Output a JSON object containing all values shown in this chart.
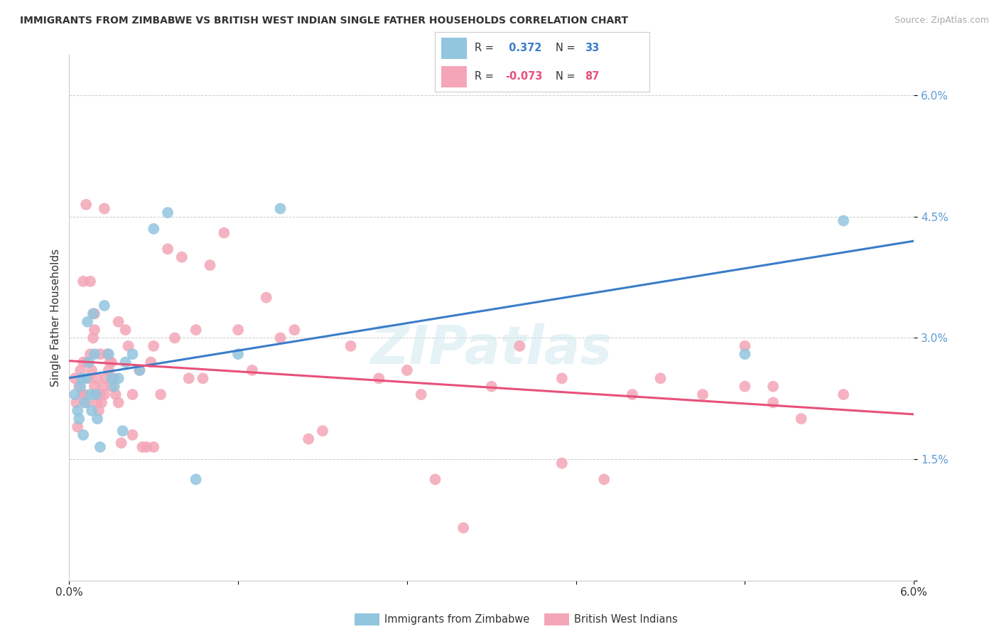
{
  "title": "IMMIGRANTS FROM ZIMBABWE VS BRITISH WEST INDIAN SINGLE FATHER HOUSEHOLDS CORRELATION CHART",
  "source": "Source: ZipAtlas.com",
  "ylabel": "Single Father Households",
  "xlim": [
    0.0,
    6.0
  ],
  "ylim": [
    0.0,
    6.5
  ],
  "ytick_vals": [
    0.0,
    1.5,
    3.0,
    4.5,
    6.0
  ],
  "ytick_labels": [
    "",
    "1.5%",
    "3.0%",
    "4.5%",
    "6.0%"
  ],
  "xtick_vals": [
    0.0,
    1.2,
    2.4,
    3.6,
    4.8,
    6.0
  ],
  "xtick_labels": [
    "0.0%",
    "",
    "",
    "",
    "",
    "6.0%"
  ],
  "R_blue": 0.372,
  "N_blue": 33,
  "R_pink": -0.073,
  "N_pink": 87,
  "legend_label_blue": "Immigrants from Zimbabwe",
  "legend_label_pink": "British West Indians",
  "blue_color": "#92c5de",
  "pink_color": "#f4a6b8",
  "blue_line_color": "#3a7dc9",
  "pink_line_color": "#e8507a",
  "blue_x": [
    0.04,
    0.06,
    0.07,
    0.08,
    0.09,
    0.1,
    0.11,
    0.12,
    0.13,
    0.14,
    0.15,
    0.16,
    0.17,
    0.18,
    0.19,
    0.2,
    0.22,
    0.25,
    0.28,
    0.3,
    0.32,
    0.35,
    0.38,
    0.4,
    0.45,
    0.5,
    0.6,
    0.7,
    0.9,
    1.2,
    1.5,
    4.8,
    5.5
  ],
  "blue_y": [
    2.3,
    2.1,
    2.0,
    2.4,
    2.5,
    1.8,
    2.2,
    2.5,
    3.2,
    2.7,
    2.3,
    2.1,
    3.3,
    2.8,
    2.3,
    2.0,
    1.65,
    3.4,
    2.8,
    2.5,
    2.4,
    2.5,
    1.85,
    2.7,
    2.8,
    2.6,
    4.35,
    4.55,
    1.25,
    2.8,
    4.6,
    2.8,
    4.45
  ],
  "pink_x": [
    0.04,
    0.05,
    0.06,
    0.07,
    0.08,
    0.09,
    0.1,
    0.1,
    0.11,
    0.12,
    0.13,
    0.14,
    0.15,
    0.15,
    0.16,
    0.17,
    0.18,
    0.18,
    0.19,
    0.2,
    0.2,
    0.21,
    0.22,
    0.22,
    0.23,
    0.24,
    0.25,
    0.26,
    0.27,
    0.28,
    0.29,
    0.3,
    0.3,
    0.32,
    0.33,
    0.35,
    0.37,
    0.4,
    0.42,
    0.45,
    0.5,
    0.52,
    0.55,
    0.58,
    0.6,
    0.65,
    0.7,
    0.75,
    0.8,
    0.85,
    0.9,
    0.95,
    1.0,
    1.1,
    1.2,
    1.3,
    1.4,
    1.5,
    1.6,
    1.7,
    1.8,
    2.0,
    2.2,
    2.4,
    2.6,
    2.8,
    3.0,
    3.2,
    3.5,
    3.8,
    4.0,
    4.2,
    4.5,
    4.8,
    5.0,
    5.2,
    5.5,
    0.12,
    0.18,
    0.25,
    0.35,
    0.45,
    0.6,
    2.5,
    3.5,
    4.8,
    5.0
  ],
  "pink_y": [
    2.5,
    2.2,
    1.9,
    2.4,
    2.6,
    2.3,
    2.7,
    3.7,
    2.3,
    2.7,
    2.2,
    2.5,
    3.7,
    2.8,
    2.6,
    3.0,
    2.4,
    3.1,
    2.3,
    2.2,
    2.5,
    2.1,
    2.3,
    2.8,
    2.2,
    2.4,
    2.3,
    2.5,
    2.8,
    2.6,
    2.7,
    2.4,
    2.7,
    2.5,
    2.3,
    2.2,
    1.7,
    3.1,
    2.9,
    1.8,
    2.6,
    1.65,
    1.65,
    2.7,
    2.9,
    2.3,
    4.1,
    3.0,
    4.0,
    2.5,
    3.1,
    2.5,
    3.9,
    4.3,
    3.1,
    2.6,
    3.5,
    3.0,
    3.1,
    1.75,
    1.85,
    2.9,
    2.5,
    2.6,
    1.25,
    0.65,
    2.4,
    2.9,
    2.5,
    1.25,
    2.3,
    2.5,
    2.3,
    2.4,
    2.2,
    2.0,
    2.3,
    4.65,
    3.3,
    4.6,
    3.2,
    2.3,
    1.65,
    2.3,
    1.45,
    2.9,
    2.4
  ]
}
